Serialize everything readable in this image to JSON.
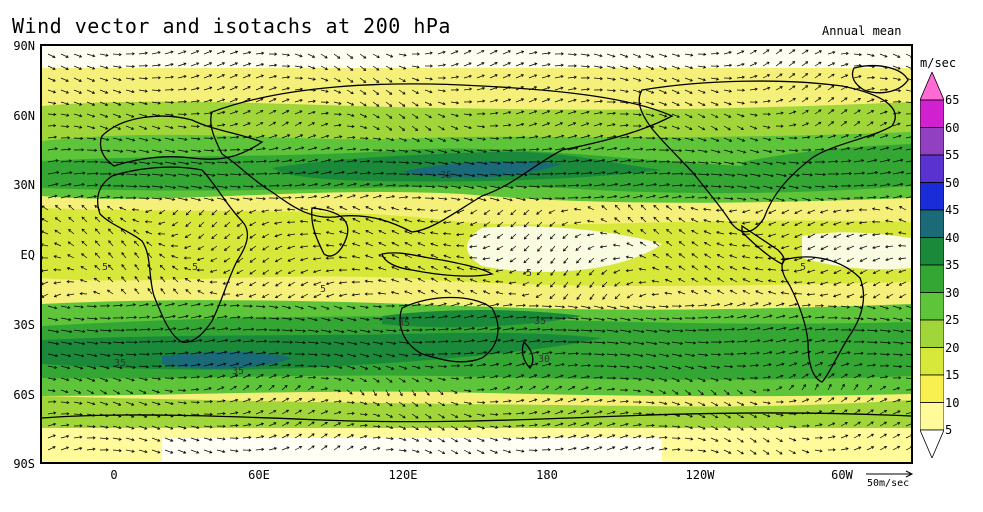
{
  "title": "Wind vector and isotachs at 200 hPa",
  "subtitle": "Annual mean",
  "y_axis_labels": [
    "90N",
    "60N",
    "30N",
    "EQ",
    "30S",
    "60S",
    "90S"
  ],
  "x_axis_labels": [
    "0",
    "60E",
    "120E",
    "180",
    "120W",
    "60W"
  ],
  "colorbar": {
    "unit": "m/sec",
    "levels": [
      "65",
      "60",
      "55",
      "50",
      "45",
      "40",
      "35",
      "30",
      "25",
      "20",
      "15",
      "10",
      "5"
    ],
    "colors": [
      "#ff6ad5",
      "#d020d0",
      "#9040c0",
      "#5a32d0",
      "#1a2bd8",
      "#1a6a78",
      "#1a8a3a",
      "#34a634",
      "#5ec43a",
      "#a0d63a",
      "#d8e83a",
      "#f8f050",
      "#fffa9a",
      "#ffffff"
    ]
  },
  "contour_labels": [
    "35",
    "35",
    "35",
    "35",
    "35",
    "30",
    "5",
    "5",
    "5",
    "5",
    "5"
  ],
  "reference_vector": "50m/sec",
  "colors": {
    "land_outline": "#000000",
    "vector": "#000000",
    "frame": "#000000"
  }
}
